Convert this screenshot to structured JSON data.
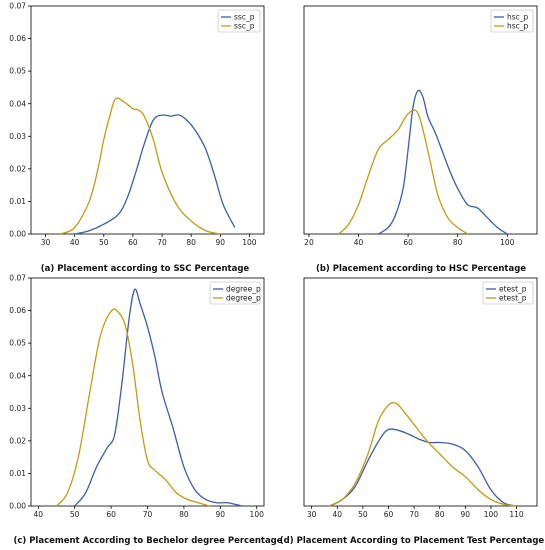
{
  "chart_data": [
    {
      "type": "line",
      "caption": "(a) Placement according to SSC Percentage",
      "xlim": [
        25,
        105
      ],
      "ylim": [
        0,
        0.07
      ],
      "xticks": [
        30,
        40,
        50,
        60,
        70,
        80,
        90,
        100
      ],
      "yticks": [
        "0.00",
        "0.01",
        "0.02",
        "0.03",
        "0.04",
        "0.05",
        "0.06",
        "0.07"
      ],
      "legend_position": "top-right",
      "series": [
        {
          "name": "ssc_p",
          "color": "#3b5ea8",
          "x": [
            40,
            45,
            50,
            55,
            58,
            61,
            64,
            67,
            70,
            73,
            76,
            79,
            82,
            85,
            88,
            91,
            95
          ],
          "y": [
            0.0,
            0.001,
            0.003,
            0.006,
            0.011,
            0.019,
            0.028,
            0.035,
            0.0365,
            0.0362,
            0.0365,
            0.0345,
            0.031,
            0.026,
            0.018,
            0.009,
            0.002
          ]
        },
        {
          "name": "ssc_p",
          "color": "#c49a12",
          "x": [
            35,
            40,
            45,
            48,
            50,
            52,
            54,
            57,
            60,
            62,
            64,
            67,
            70,
            75,
            80,
            85,
            90
          ],
          "y": [
            0.0,
            0.002,
            0.01,
            0.02,
            0.029,
            0.036,
            0.0415,
            0.0405,
            0.0385,
            0.038,
            0.036,
            0.029,
            0.019,
            0.009,
            0.004,
            0.001,
            0.0
          ]
        }
      ]
    },
    {
      "type": "line",
      "caption": "(b) Placement according to HSC Percentage",
      "xlim": [
        18,
        112
      ],
      "ylim": [
        0,
        0.07
      ],
      "xticks": [
        20,
        40,
        60,
        80,
        100
      ],
      "yticks": [],
      "legend_position": "top-right",
      "series": [
        {
          "name": "hsc_p",
          "color": "#3b5ea8",
          "x": [
            48,
            52,
            55,
            58,
            60,
            62,
            64,
            66,
            68,
            71,
            74,
            77,
            80,
            84,
            88,
            92,
            96,
            100
          ],
          "y": [
            0.0,
            0.002,
            0.006,
            0.014,
            0.026,
            0.039,
            0.044,
            0.042,
            0.036,
            0.031,
            0.025,
            0.019,
            0.014,
            0.009,
            0.008,
            0.005,
            0.002,
            0.0
          ]
        },
        {
          "name": "hsc_p",
          "color": "#c49a12",
          "x": [
            32,
            36,
            40,
            44,
            48,
            52,
            56,
            59,
            62,
            64,
            66,
            69,
            72,
            76,
            80,
            84
          ],
          "y": [
            0.0,
            0.003,
            0.009,
            0.018,
            0.026,
            0.029,
            0.032,
            0.036,
            0.038,
            0.037,
            0.032,
            0.022,
            0.012,
            0.005,
            0.002,
            0.0
          ]
        }
      ]
    },
    {
      "type": "line",
      "caption": "(c) Placement According to Bechelor degree Percentage",
      "xlim": [
        38,
        102
      ],
      "ylim": [
        0,
        0.07
      ],
      "xticks": [
        40,
        50,
        60,
        70,
        80,
        90,
        100
      ],
      "yticks": [
        "0.00",
        "0.01",
        "0.02",
        "0.03",
        "0.04",
        "0.05",
        "0.06",
        "0.07"
      ],
      "legend_position": "top-right",
      "series": [
        {
          "name": "degree_p",
          "color": "#3b5ea8",
          "x": [
            50,
            53,
            56,
            59,
            61,
            63,
            65,
            66.5,
            68,
            70,
            72,
            74,
            77,
            80,
            83,
            86,
            89,
            92,
            96
          ],
          "y": [
            0.0,
            0.004,
            0.012,
            0.018,
            0.022,
            0.038,
            0.058,
            0.0665,
            0.062,
            0.055,
            0.046,
            0.035,
            0.024,
            0.012,
            0.005,
            0.002,
            0.001,
            0.001,
            0.0
          ]
        },
        {
          "name": "degree_p",
          "color": "#c49a12",
          "x": [
            45,
            48,
            51,
            54,
            57,
            60,
            62,
            64,
            66,
            68,
            70,
            72,
            75,
            78,
            81,
            84,
            87
          ],
          "y": [
            0.0,
            0.004,
            0.015,
            0.034,
            0.052,
            0.0598,
            0.0595,
            0.055,
            0.043,
            0.026,
            0.014,
            0.011,
            0.008,
            0.004,
            0.002,
            0.001,
            0.0
          ]
        }
      ]
    },
    {
      "type": "line",
      "caption": "(d) Placement According to Placement Test Percentage",
      "xlim": [
        27,
        118
      ],
      "ylim": [
        0,
        0.07
      ],
      "xticks": [
        30,
        40,
        50,
        60,
        70,
        80,
        90,
        100,
        110
      ],
      "yticks": [],
      "legend_position": "top-right",
      "series": [
        {
          "name": "etest_p",
          "color": "#3b5ea8",
          "x": [
            37,
            42,
            47,
            52,
            57,
            60,
            64,
            68,
            72,
            76,
            80,
            85,
            90,
            95,
            100,
            105,
            110
          ],
          "y": [
            0.0,
            0.002,
            0.006,
            0.014,
            0.021,
            0.0235,
            0.0232,
            0.022,
            0.0205,
            0.0195,
            0.0195,
            0.019,
            0.017,
            0.012,
            0.005,
            0.001,
            0.0
          ]
        },
        {
          "name": "etest_p",
          "color": "#c49a12",
          "x": [
            37,
            42,
            47,
            52,
            56,
            60,
            63,
            66,
            70,
            75,
            80,
            85,
            90,
            95,
            100,
            105,
            110
          ],
          "y": [
            0.0,
            0.002,
            0.007,
            0.016,
            0.026,
            0.031,
            0.0315,
            0.029,
            0.025,
            0.02,
            0.016,
            0.012,
            0.009,
            0.005,
            0.002,
            0.0005,
            0.0
          ]
        }
      ]
    }
  ]
}
